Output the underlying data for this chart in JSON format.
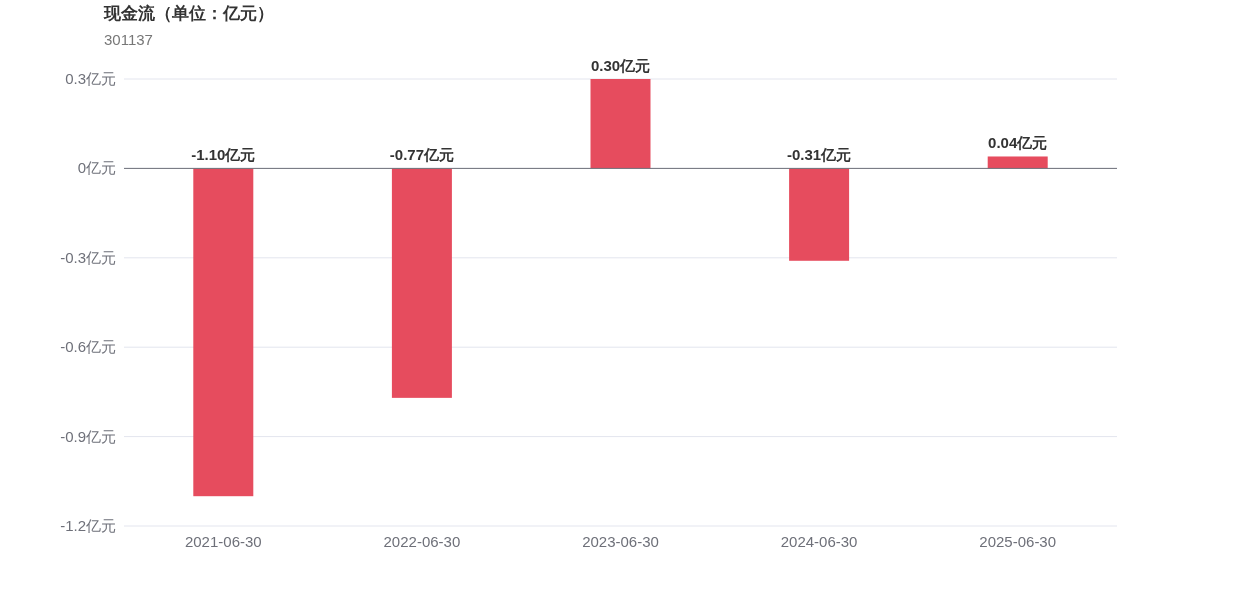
{
  "chart_data": {
    "type": "bar",
    "title": "现金流（单位：亿元）",
    "subtitle": "301137",
    "categories": [
      "2021-06-30",
      "2022-06-30",
      "2023-06-30",
      "2024-06-30",
      "2025-06-30"
    ],
    "values": [
      -1.1,
      -0.77,
      0.3,
      -0.31,
      0.04
    ],
    "value_labels": [
      "-1.10亿元",
      "-0.77亿元",
      "0.30亿元",
      "-0.31亿元",
      "0.04亿元"
    ],
    "color": "#e64c5e",
    "ylim": [
      -1.2,
      0.3
    ],
    "yticks": [
      {
        "value": 0.3,
        "label": "0.3亿元"
      },
      {
        "value": 0,
        "label": "0亿元"
      },
      {
        "value": -0.3,
        "label": "-0.3亿元"
      },
      {
        "value": -0.6,
        "label": "-0.6亿元"
      },
      {
        "value": -0.9,
        "label": "-0.9亿元"
      },
      {
        "value": -1.2,
        "label": "-1.2亿元"
      }
    ],
    "grid": "y"
  }
}
